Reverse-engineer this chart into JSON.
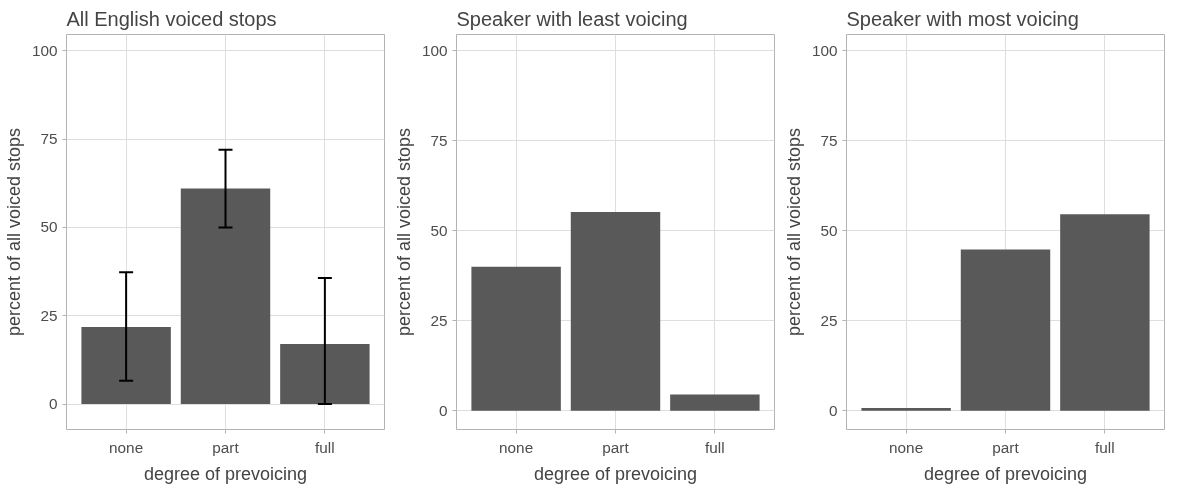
{
  "chart_data": [
    {
      "type": "bar",
      "title": "All English voiced stops",
      "xlabel": "degree of prevoicing",
      "ylabel": "percent of all voiced stops",
      "categories": [
        "none",
        "part",
        "full"
      ],
      "values": [
        21.8,
        61,
        17
      ],
      "errors": [
        [
          6.6,
          37.3
        ],
        [
          50,
          72
        ],
        [
          0,
          35.7
        ]
      ],
      "colors": [
        "#595959",
        "#595959",
        "#595959"
      ],
      "ylim": [
        -7.2,
        104.6
      ],
      "yticks": [
        0,
        25,
        50,
        75,
        100
      ],
      "grid": true
    },
    {
      "type": "bar",
      "title": "Speaker with least voicing",
      "xlabel": "degree of prevoicing",
      "ylabel": "percent of all voiced stops",
      "categories": [
        "none",
        "part",
        "full"
      ],
      "values": [
        40,
        55.2,
        4.5
      ],
      "colors": [
        "#595959",
        "#595959",
        "#595959"
      ],
      "ylim": [
        -5.2,
        104.5
      ],
      "yticks": [
        0,
        25,
        50,
        75,
        100
      ],
      "grid": true
    },
    {
      "type": "bar",
      "title": "Speaker with most voicing",
      "xlabel": "degree of prevoicing",
      "ylabel": "percent of all voiced stops",
      "categories": [
        "none",
        "part",
        "full"
      ],
      "values": [
        0.8,
        44.8,
        54.6
      ],
      "colors": [
        "#595959",
        "#595959",
        "#595959"
      ],
      "ylim": [
        -5.2,
        104.5
      ],
      "yticks": [
        0,
        25,
        50,
        75,
        100
      ],
      "grid": true
    }
  ]
}
